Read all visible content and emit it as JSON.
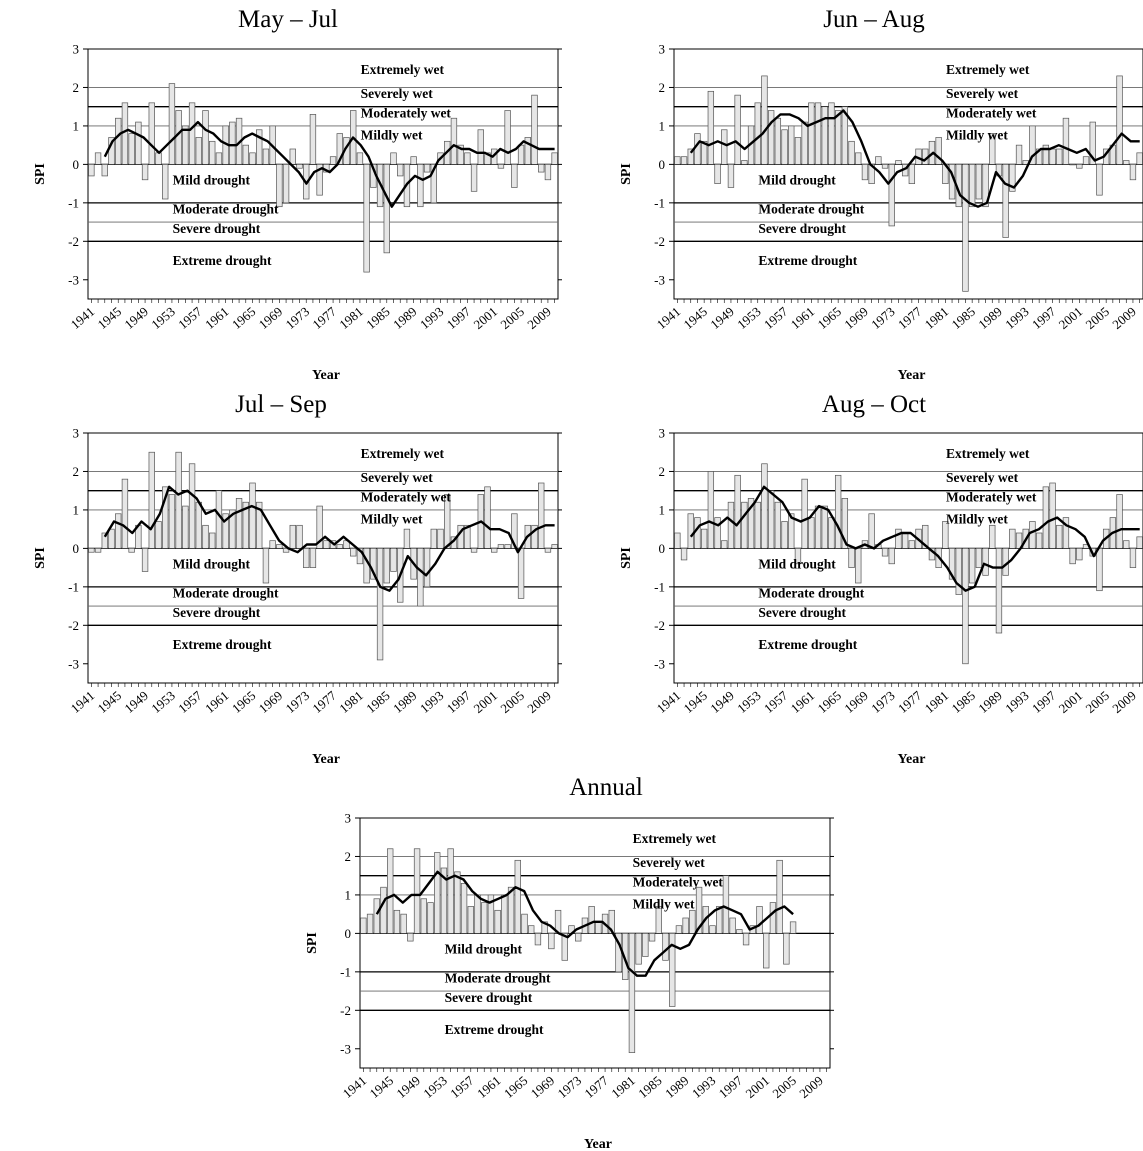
{
  "figure": {
    "shared": {
      "xlabel": "Year",
      "ylabel": "SPI",
      "ylim": [
        -3.5,
        3
      ],
      "yticks": [
        3,
        2,
        1,
        0,
        -1,
        -2,
        -3
      ],
      "xlim": [
        1940.5,
        2010.5
      ],
      "xtick_years": [
        1941,
        1945,
        1949,
        1953,
        1957,
        1961,
        1965,
        1969,
        1973,
        1977,
        1981,
        1985,
        1989,
        1993,
        1997,
        2001,
        2005,
        2009
      ],
      "thresholds": [
        2,
        1.5,
        1,
        0,
        -1,
        -1.5,
        -2
      ],
      "zones": [
        "Extremely wet",
        "Severely wet",
        "Moderately wet",
        "Mildly wet",
        "Mild drought",
        "Moderate drought",
        "Severe drought",
        "Extreme drought"
      ],
      "colors": {
        "bar_fill": "#e6e6e6",
        "bar_edge": "#555555",
        "line": "#000000"
      }
    }
  },
  "chart_data": [
    {
      "type": "bar",
      "title": "May – Jul",
      "x_start": 1941,
      "values": [
        -0.3,
        0.3,
        -0.3,
        0.7,
        1.2,
        1.6,
        0.8,
        1.1,
        -0.4,
        1.6,
        0.3,
        -0.9,
        2.1,
        1.4,
        1.0,
        1.6,
        0.7,
        1.4,
        0.6,
        0.3,
        1.0,
        1.1,
        1.2,
        0.5,
        0.3,
        0.9,
        0.4,
        1.0,
        -1.1,
        -1.0,
        0.4,
        -0.1,
        -0.9,
        1.3,
        -0.8,
        -0.2,
        0.2,
        0.8,
        0.7,
        1.4,
        0.3,
        -2.8,
        -0.6,
        -1.1,
        -2.3,
        0.3,
        -0.3,
        -1.1,
        0.2,
        -1.1,
        -0.2,
        -1.0,
        0.3,
        0.6,
        1.2,
        0.5,
        0.3,
        -0.7,
        0.9,
        0.3,
        0.4,
        -0.1,
        1.4,
        -0.6,
        0.5,
        0.7,
        1.8,
        -0.2,
        -0.4,
        0.3
      ],
      "smoothed": [
        0.2,
        0.6,
        0.8,
        0.9,
        0.8,
        0.7,
        0.5,
        0.3,
        0.5,
        0.7,
        0.9,
        0.9,
        1.1,
        0.9,
        0.8,
        0.6,
        0.5,
        0.5,
        0.7,
        0.8,
        0.7,
        0.6,
        0.4,
        0.2,
        0.0,
        -0.2,
        -0.5,
        -0.2,
        -0.1,
        -0.2,
        0.0,
        0.4,
        0.7,
        0.5,
        0.2,
        -0.3,
        -0.7,
        -1.1,
        -0.8,
        -0.5,
        -0.3,
        -0.4,
        -0.3,
        0.1,
        0.3,
        0.5,
        0.4,
        0.4,
        0.3,
        0.3,
        0.2,
        0.4,
        0.3,
        0.4,
        0.6,
        0.5,
        0.4,
        0.4,
        0.4
      ]
    },
    {
      "type": "bar",
      "title": "Jun – Aug",
      "x_start": 1941,
      "values": [
        0.2,
        0.2,
        0.4,
        0.8,
        0.6,
        1.9,
        -0.5,
        0.9,
        -0.6,
        1.8,
        0.1,
        1.0,
        1.6,
        2.3,
        1.4,
        1.2,
        0.9,
        1.0,
        0.7,
        1.1,
        1.6,
        1.6,
        1.5,
        1.6,
        1.4,
        1.5,
        0.6,
        0.3,
        -0.4,
        -0.5,
        0.2,
        -0.1,
        -1.6,
        0.1,
        -0.3,
        -0.5,
        0.4,
        0.4,
        0.6,
        0.7,
        -0.5,
        -0.9,
        -1.1,
        -3.3,
        -1.1,
        -0.9,
        -1.1,
        0.8,
        -0.3,
        -1.9,
        -0.7,
        0.5,
        0.1,
        1.0,
        0.4,
        0.5,
        0.4,
        0.4,
        1.2,
        0.0,
        -0.1,
        0.2,
        1.1,
        -0.8,
        0.4,
        0.5,
        2.3,
        0.1,
        -0.4,
        0.3
      ],
      "smoothed": [
        0.3,
        0.6,
        0.5,
        0.6,
        0.5,
        0.6,
        0.4,
        0.6,
        0.8,
        1.1,
        1.3,
        1.3,
        1.2,
        1.0,
        1.1,
        1.2,
        1.2,
        1.4,
        1.1,
        0.6,
        0.0,
        -0.2,
        -0.5,
        -0.2,
        -0.1,
        0.2,
        0.1,
        0.3,
        0.1,
        -0.2,
        -0.8,
        -1.0,
        -1.1,
        -1.0,
        -0.2,
        -0.5,
        -0.6,
        -0.3,
        0.2,
        0.4,
        0.4,
        0.5,
        0.4,
        0.3,
        0.4,
        0.1,
        0.2,
        0.5,
        0.8,
        0.6,
        0.6
      ]
    },
    {
      "type": "bar",
      "title": "Jul – Sep",
      "x_start": 1941,
      "values": [
        -0.1,
        -0.1,
        0.4,
        0.5,
        0.9,
        1.8,
        -0.1,
        0.6,
        -0.6,
        2.5,
        0.7,
        1.6,
        1.4,
        2.5,
        1.1,
        2.2,
        1.2,
        0.6,
        0.4,
        1.5,
        0.9,
        1.0,
        1.3,
        1.2,
        1.7,
        1.2,
        -0.9,
        0.2,
        0.1,
        -0.1,
        0.6,
        0.6,
        -0.5,
        -0.5,
        1.1,
        0.2,
        0.2,
        0.1,
        0.2,
        -0.2,
        -0.4,
        -0.9,
        -0.8,
        -2.9,
        -0.9,
        -0.6,
        -1.4,
        0.5,
        -0.8,
        -1.5,
        -1.0,
        0.5,
        0.5,
        1.4,
        0.3,
        0.6,
        0.6,
        -0.1,
        1.4,
        1.6,
        -0.1,
        0.1,
        0.1,
        0.9,
        -1.3,
        0.6,
        0.6,
        1.7,
        -0.1,
        0.1
      ],
      "smoothed": [
        0.3,
        0.7,
        0.6,
        0.4,
        0.7,
        0.5,
        0.9,
        1.6,
        1.4,
        1.5,
        1.3,
        0.9,
        1.0,
        0.7,
        0.9,
        1.0,
        1.1,
        1.0,
        0.6,
        0.2,
        0.0,
        -0.1,
        0.1,
        0.1,
        0.3,
        0.1,
        0.3,
        0.1,
        -0.1,
        -0.5,
        -1.0,
        -1.1,
        -0.8,
        -0.2,
        -0.5,
        -0.7,
        -0.4,
        0.0,
        0.2,
        0.5,
        0.6,
        0.7,
        0.5,
        0.5,
        0.4,
        -0.1,
        0.3,
        0.5,
        0.6,
        0.6
      ]
    },
    {
      "type": "bar",
      "title": "Aug – Oct",
      "x_start": 1941,
      "values": [
        0.4,
        -0.3,
        0.9,
        0.8,
        0.5,
        2.0,
        0.8,
        0.2,
        1.2,
        1.9,
        1.2,
        1.3,
        1.2,
        2.2,
        1.5,
        1.2,
        0.7,
        0.9,
        -0.4,
        1.8,
        0.8,
        1.1,
        1.1,
        0.8,
        1.9,
        1.3,
        -0.5,
        -0.9,
        0.2,
        0.9,
        0.1,
        -0.2,
        -0.4,
        0.5,
        0.4,
        0.2,
        0.5,
        0.6,
        -0.3,
        -0.5,
        0.7,
        -0.8,
        -1.2,
        -3.0,
        -0.9,
        -0.5,
        -0.7,
        0.6,
        -2.2,
        -0.7,
        0.5,
        0.4,
        0.5,
        0.7,
        0.4,
        1.6,
        1.7,
        0.6,
        0.8,
        -0.4,
        -0.3,
        0.1,
        -0.2,
        -1.1,
        0.5,
        0.8,
        1.4,
        0.2,
        -0.5,
        0.3
      ],
      "smoothed": [
        0.3,
        0.6,
        0.7,
        0.6,
        0.8,
        0.6,
        0.9,
        1.2,
        1.6,
        1.4,
        1.2,
        0.8,
        0.7,
        0.8,
        1.1,
        1.0,
        0.6,
        0.1,
        0.0,
        0.1,
        0.0,
        0.2,
        0.3,
        0.4,
        0.4,
        0.2,
        0.0,
        -0.2,
        -0.5,
        -0.9,
        -1.1,
        -1.0,
        -0.4,
        -0.5,
        -0.5,
        -0.3,
        0.0,
        0.4,
        0.5,
        0.7,
        0.8,
        0.6,
        0.5,
        0.3,
        -0.2,
        0.2,
        0.4,
        0.5,
        0.5,
        0.5
      ]
    },
    {
      "type": "bar",
      "title": "Annual",
      "x_start": 1941,
      "values": [
        0.4,
        0.5,
        0.9,
        1.2,
        2.2,
        0.6,
        0.5,
        -0.2,
        2.2,
        0.9,
        0.8,
        2.1,
        1.7,
        2.2,
        1.6,
        1.3,
        0.7,
        1.0,
        0.8,
        1.0,
        0.6,
        1.0,
        1.2,
        1.9,
        0.5,
        0.2,
        -0.3,
        0.3,
        -0.4,
        0.6,
        -0.7,
        0.2,
        -0.2,
        0.4,
        0.7,
        0.3,
        0.5,
        0.6,
        -1.0,
        -1.2,
        -3.1,
        -0.8,
        -0.6,
        -0.2,
        0.7,
        -0.7,
        -1.9,
        0.2,
        0.4,
        0.6,
        1.2,
        0.7,
        0.2,
        0.7,
        1.5,
        0.4,
        0.1,
        -0.3,
        0.2,
        0.7,
        -0.9,
        0.8,
        1.9,
        -0.8,
        0.3
      ],
      "smoothed": [
        0.5,
        0.9,
        1.0,
        0.8,
        1.0,
        1.0,
        1.3,
        1.6,
        1.4,
        1.5,
        1.4,
        1.1,
        0.9,
        0.8,
        0.9,
        1.0,
        1.2,
        1.1,
        0.6,
        0.3,
        0.2,
        0.0,
        -0.1,
        0.1,
        0.2,
        0.3,
        0.3,
        0.1,
        -0.3,
        -0.9,
        -1.1,
        -1.1,
        -0.7,
        -0.5,
        -0.3,
        -0.4,
        -0.3,
        0.1,
        0.4,
        0.6,
        0.7,
        0.6,
        0.5,
        0.1,
        0.2,
        0.4,
        0.6,
        0.7,
        0.5
      ]
    }
  ]
}
